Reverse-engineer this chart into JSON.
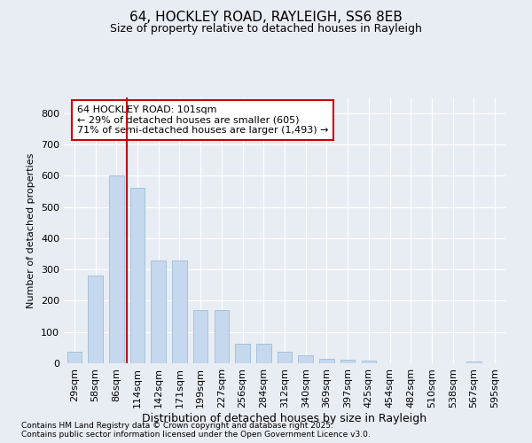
{
  "title_line1": "64, HOCKLEY ROAD, RAYLEIGH, SS6 8EB",
  "title_line2": "Size of property relative to detached houses in Rayleigh",
  "xlabel": "Distribution of detached houses by size in Rayleigh",
  "ylabel": "Number of detached properties",
  "categories": [
    "29sqm",
    "58sqm",
    "86sqm",
    "114sqm",
    "142sqm",
    "171sqm",
    "199sqm",
    "227sqm",
    "256sqm",
    "284sqm",
    "312sqm",
    "340sqm",
    "369sqm",
    "397sqm",
    "425sqm",
    "454sqm",
    "482sqm",
    "510sqm",
    "538sqm",
    "567sqm",
    "595sqm"
  ],
  "values": [
    38,
    280,
    600,
    560,
    330,
    330,
    170,
    170,
    63,
    63,
    38,
    25,
    15,
    10,
    8,
    0,
    0,
    0,
    0,
    7,
    0
  ],
  "bar_color": "#c5d8ee",
  "bar_edge_color": "#a0bcd8",
  "vline_x_idx": 2.5,
  "vline_color": "#cc0000",
  "annotation_text": "64 HOCKLEY ROAD: 101sqm\n← 29% of detached houses are smaller (605)\n71% of semi-detached houses are larger (1,493) →",
  "annotation_box_facecolor": "#ffffff",
  "annotation_box_edgecolor": "#cc0000",
  "ylim": [
    0,
    850
  ],
  "yticks": [
    0,
    100,
    200,
    300,
    400,
    500,
    600,
    700,
    800
  ],
  "background_color": "#e8edf4",
  "grid_color": "#ffffff",
  "footer_line1": "Contains HM Land Registry data © Crown copyright and database right 2025.",
  "footer_line2": "Contains public sector information licensed under the Open Government Licence v3.0.",
  "title1_fontsize": 11,
  "title2_fontsize": 9,
  "xlabel_fontsize": 9,
  "ylabel_fontsize": 8,
  "tick_fontsize": 8,
  "annot_fontsize": 8,
  "footer_fontsize": 6.5
}
